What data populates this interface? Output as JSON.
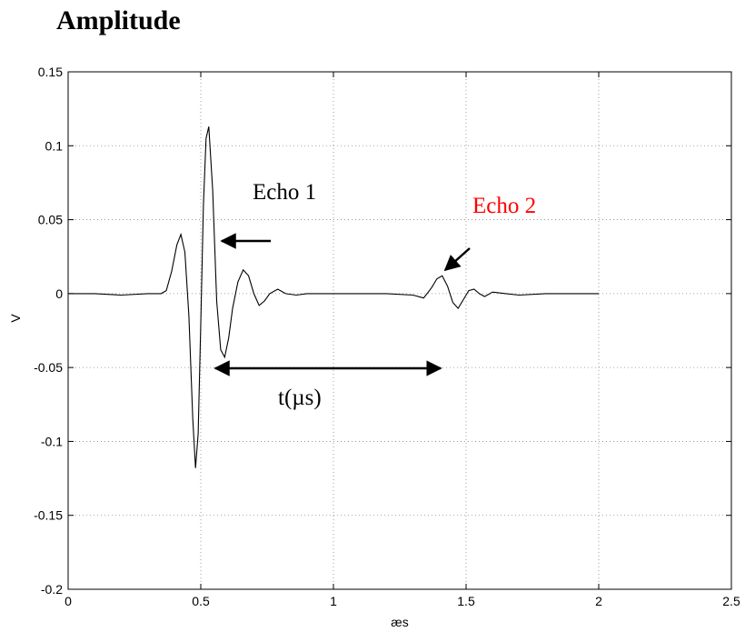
{
  "heading": "Amplitude",
  "chart_data": {
    "type": "line",
    "title": "",
    "xlabel": "æs",
    "ylabel": "V",
    "xlim": [
      0,
      2.5
    ],
    "ylim": [
      -0.2,
      0.15
    ],
    "grid": true,
    "x_ticks": [
      "0",
      "0.5",
      "1",
      "1.5",
      "2",
      "2.5"
    ],
    "y_ticks": [
      "0.15",
      "0.1",
      "0.05",
      "0",
      "-0.05",
      "-0.1",
      "-0.15",
      "-0.2"
    ],
    "series": [
      {
        "color": "#000000",
        "points": [
          [
            0.0,
            0.0
          ],
          [
            0.1,
            0.0
          ],
          [
            0.2,
            -0.001
          ],
          [
            0.3,
            0.0
          ],
          [
            0.35,
            0.0
          ],
          [
            0.37,
            0.002
          ],
          [
            0.39,
            0.015
          ],
          [
            0.41,
            0.033
          ],
          [
            0.425,
            0.04
          ],
          [
            0.44,
            0.028
          ],
          [
            0.455,
            -0.015
          ],
          [
            0.47,
            -0.085
          ],
          [
            0.48,
            -0.118
          ],
          [
            0.49,
            -0.095
          ],
          [
            0.5,
            -0.02
          ],
          [
            0.51,
            0.06
          ],
          [
            0.52,
            0.105
          ],
          [
            0.53,
            0.113
          ],
          [
            0.545,
            0.07
          ],
          [
            0.56,
            -0.005
          ],
          [
            0.575,
            -0.038
          ],
          [
            0.59,
            -0.043
          ],
          [
            0.605,
            -0.03
          ],
          [
            0.62,
            -0.01
          ],
          [
            0.64,
            0.008
          ],
          [
            0.66,
            0.016
          ],
          [
            0.68,
            0.012
          ],
          [
            0.7,
            0.0
          ],
          [
            0.72,
            -0.008
          ],
          [
            0.74,
            -0.005
          ],
          [
            0.76,
            0.0
          ],
          [
            0.79,
            0.003
          ],
          [
            0.82,
            0.0
          ],
          [
            0.86,
            -0.001
          ],
          [
            0.9,
            0.0
          ],
          [
            1.0,
            0.0
          ],
          [
            1.1,
            0.0
          ],
          [
            1.2,
            0.0
          ],
          [
            1.3,
            -0.001
          ],
          [
            1.34,
            -0.003
          ],
          [
            1.37,
            0.004
          ],
          [
            1.39,
            0.01
          ],
          [
            1.41,
            0.012
          ],
          [
            1.43,
            0.005
          ],
          [
            1.45,
            -0.006
          ],
          [
            1.47,
            -0.01
          ],
          [
            1.49,
            -0.004
          ],
          [
            1.51,
            0.002
          ],
          [
            1.53,
            0.003
          ],
          [
            1.55,
            0.0
          ],
          [
            1.57,
            -0.002
          ],
          [
            1.6,
            0.001
          ],
          [
            1.65,
            0.0
          ],
          [
            1.7,
            -0.001
          ],
          [
            1.8,
            0.0
          ],
          [
            1.9,
            0.0
          ],
          [
            2.0,
            0.0
          ]
        ]
      }
    ],
    "annotations": [
      {
        "text": "Echo 1",
        "color": "#000000"
      },
      {
        "text": "Echo 2",
        "color": "#ff0000"
      },
      {
        "text": "t(µs)",
        "color": "#000000"
      }
    ]
  }
}
